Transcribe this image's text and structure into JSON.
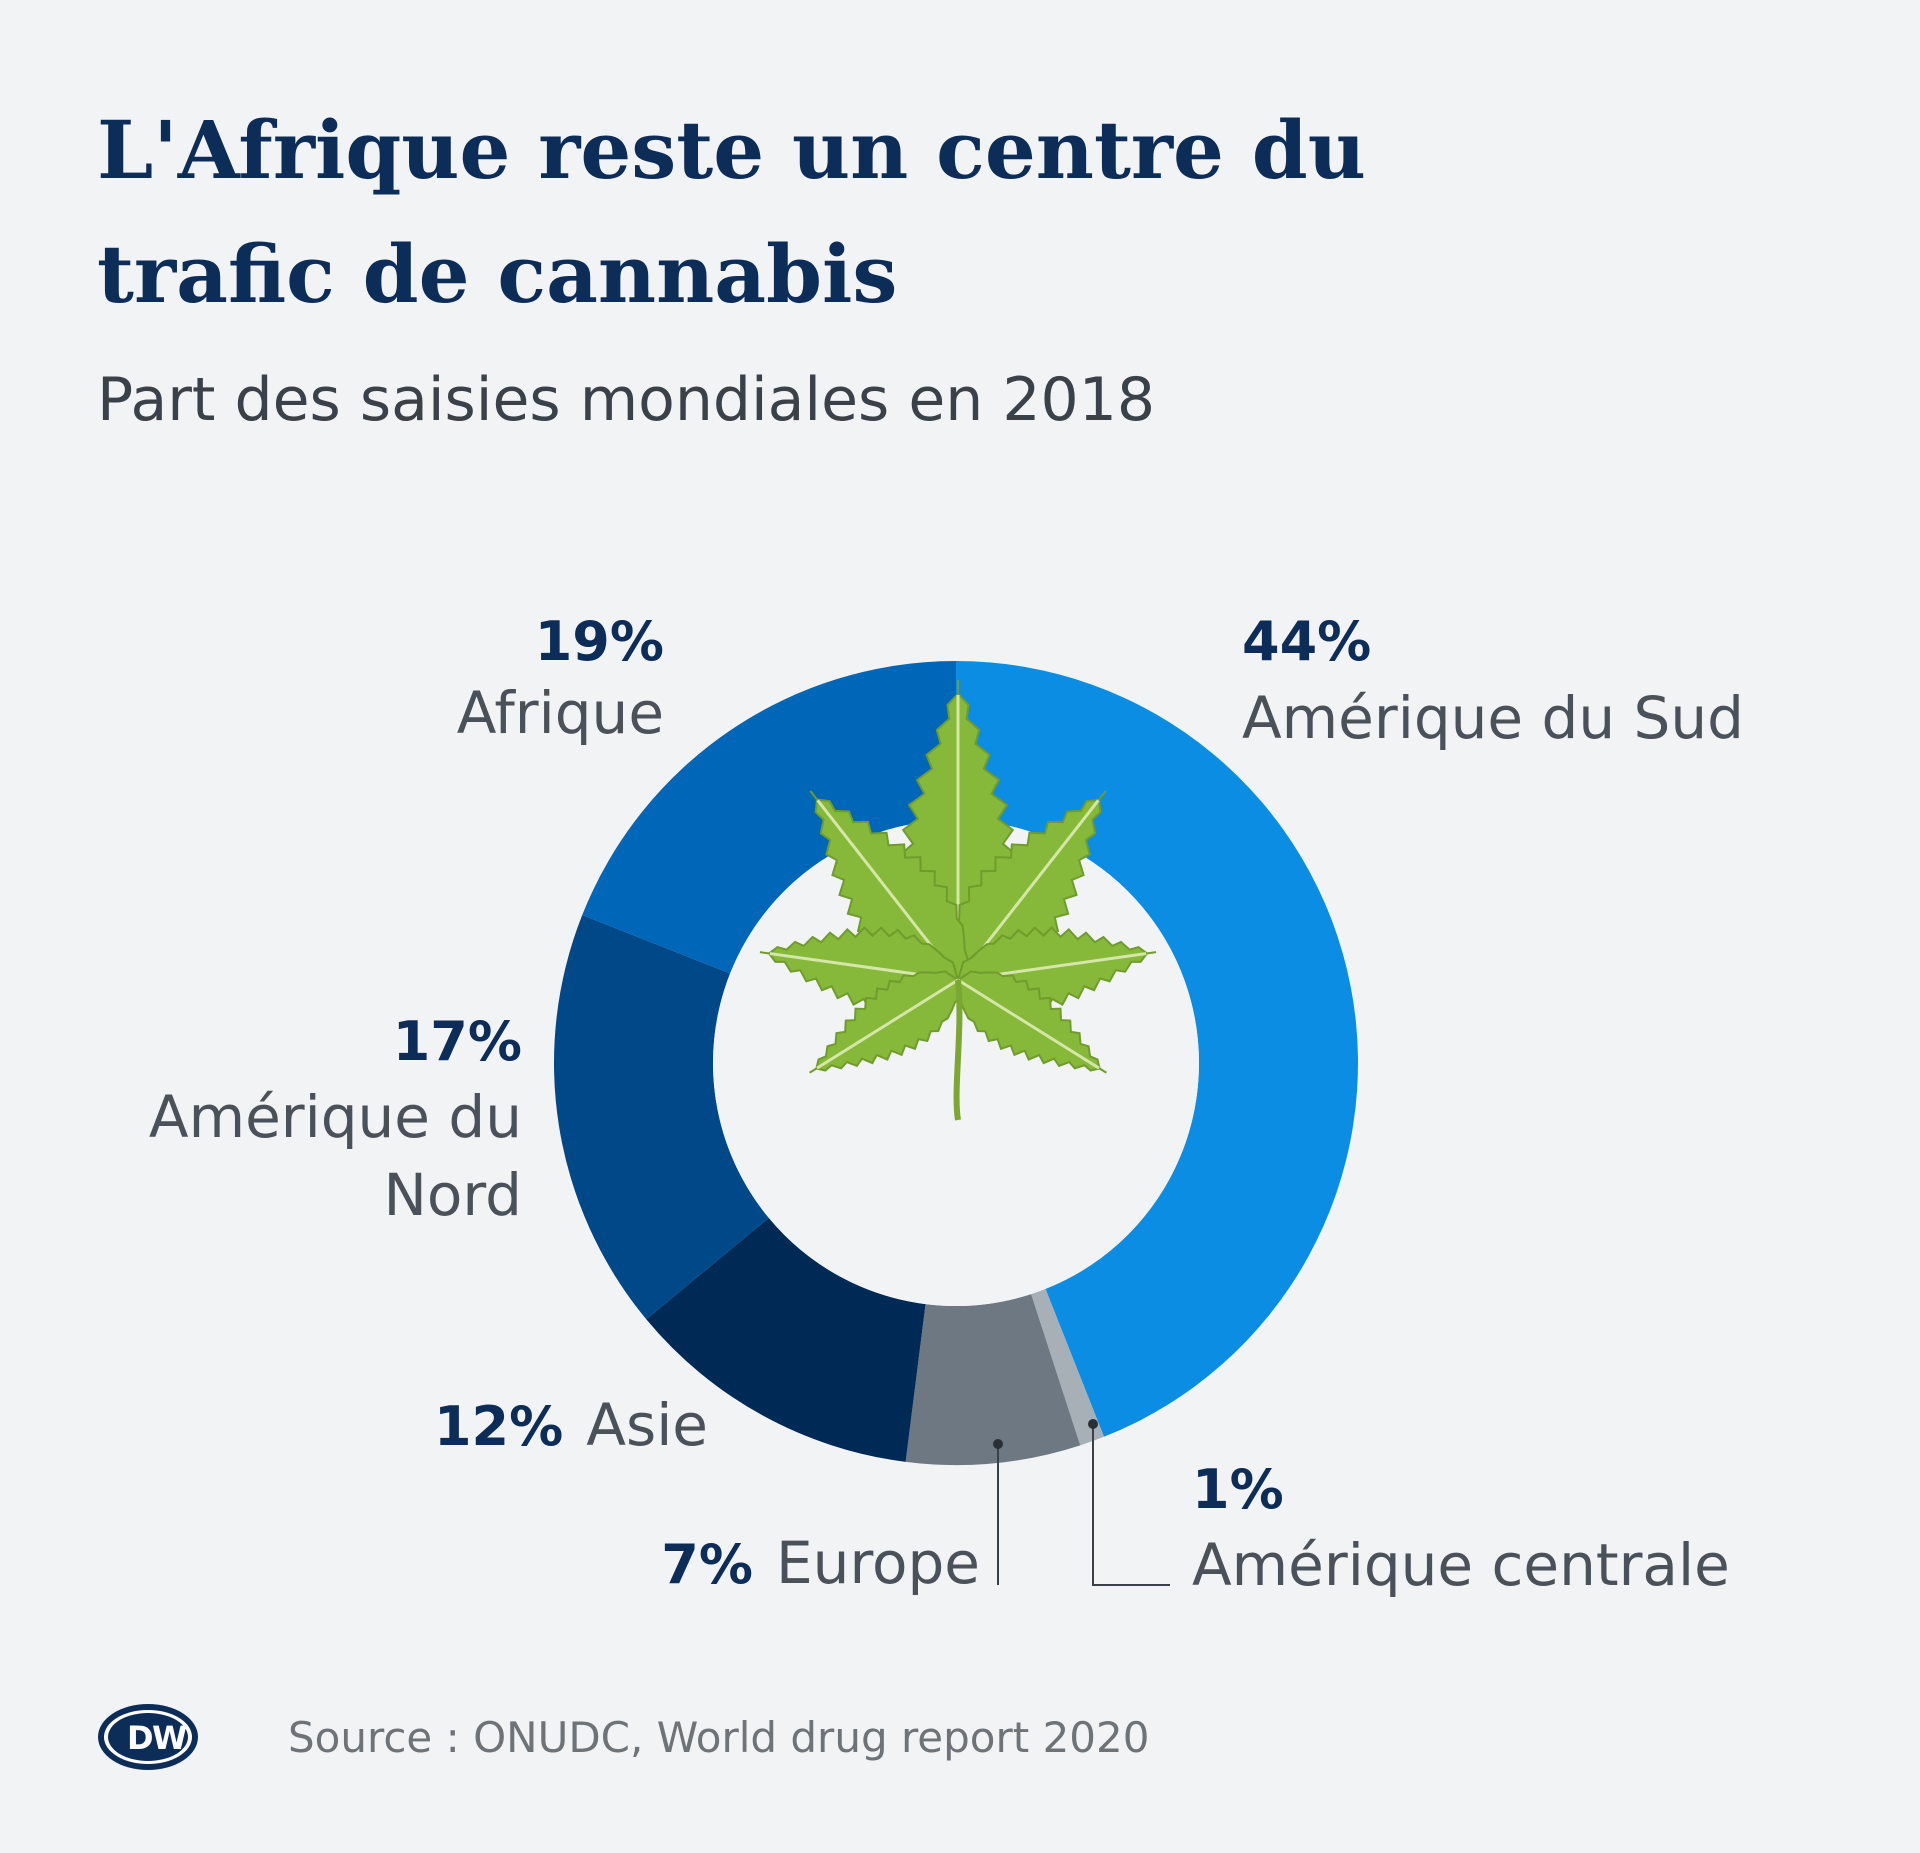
{
  "header": {
    "title": "L'Afrique reste un centre du trafic de cannabis",
    "subtitle": "Part des saisies mondiales en 2018"
  },
  "footer": {
    "source": "Source : ONUDC, World drug report 2020",
    "logo_text": "DW"
  },
  "center_icon": "cannabis-leaf-icon",
  "colors": {
    "background": "#f1f3f5",
    "title": "#0d2d59",
    "leaf": "#86b83a"
  },
  "chart_data": {
    "type": "pie",
    "style": "donut",
    "unit": "%",
    "slices": [
      {
        "name": "Amérique du Sud",
        "value": 44,
        "label": "44%",
        "color": "#0a8de3"
      },
      {
        "name": "Amérique centrale",
        "value": 1,
        "label": "1%",
        "color": "#a8b0b7"
      },
      {
        "name": "Europe",
        "value": 7,
        "label": "7%",
        "color": "#6e7882"
      },
      {
        "name": "Asie",
        "value": 12,
        "label": "12%",
        "color": "#002a56"
      },
      {
        "name": "Amérique du Nord",
        "value": 17,
        "label": "17%",
        "color": "#004888"
      },
      {
        "name": "Afrique",
        "value": 19,
        "label": "19%",
        "color": "#0066b7"
      }
    ]
  }
}
